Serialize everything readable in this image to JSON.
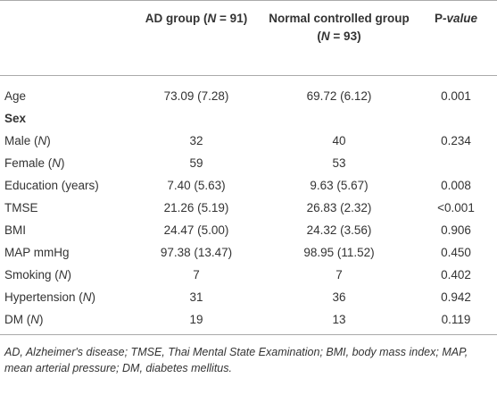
{
  "table": {
    "columns": [
      [
        "AD group (",
        "N",
        " = 91)"
      ],
      [
        "Normal controlled group (",
        "N",
        " = 93)"
      ],
      [
        "P",
        "-value"
      ]
    ],
    "rows": [
      {
        "label": [
          "Age"
        ],
        "values": [
          "73.09 (7.28)",
          "69.72 (6.12)",
          "0.001"
        ]
      },
      {
        "label": [
          "Sex"
        ]
      },
      {
        "label": [
          "Male (",
          "N",
          ")"
        ],
        "values": [
          "32",
          "40",
          "0.234"
        ]
      },
      {
        "label": [
          "Female (",
          "N",
          ")"
        ],
        "values": [
          "59",
          "53"
        ]
      },
      {
        "label": [
          "Education (years)"
        ],
        "values": [
          "7.40 (5.63)",
          "9.63 (5.67)",
          "0.008"
        ]
      },
      {
        "label": [
          "TMSE"
        ],
        "values": [
          "21.26 (5.19)",
          "26.83 (2.32)",
          "<0.001"
        ]
      },
      {
        "label": [
          "BMI"
        ],
        "values": [
          "24.47 (5.00)",
          "24.32 (3.56)",
          "0.906"
        ]
      },
      {
        "label": [
          "MAP mmHg"
        ],
        "values": [
          "97.38 (13.47)",
          "98.95 (11.52)",
          "0.450"
        ]
      },
      {
        "label": [
          "Smoking (",
          "N",
          ")"
        ],
        "values": [
          "7",
          "7",
          "0.402"
        ]
      },
      {
        "label": [
          "Hypertension (",
          "N",
          ")"
        ],
        "values": [
          "31",
          "36",
          "0.942"
        ]
      },
      {
        "label": [
          "DM (",
          "N",
          ")"
        ],
        "values": [
          "19",
          "13",
          "0.119"
        ]
      }
    ],
    "footnote": "AD, Alzheimer's disease; TMSE, Thai Mental State Examination; BMI, body mass index; MAP, mean arterial pressure; DM, diabetes mellitus."
  }
}
